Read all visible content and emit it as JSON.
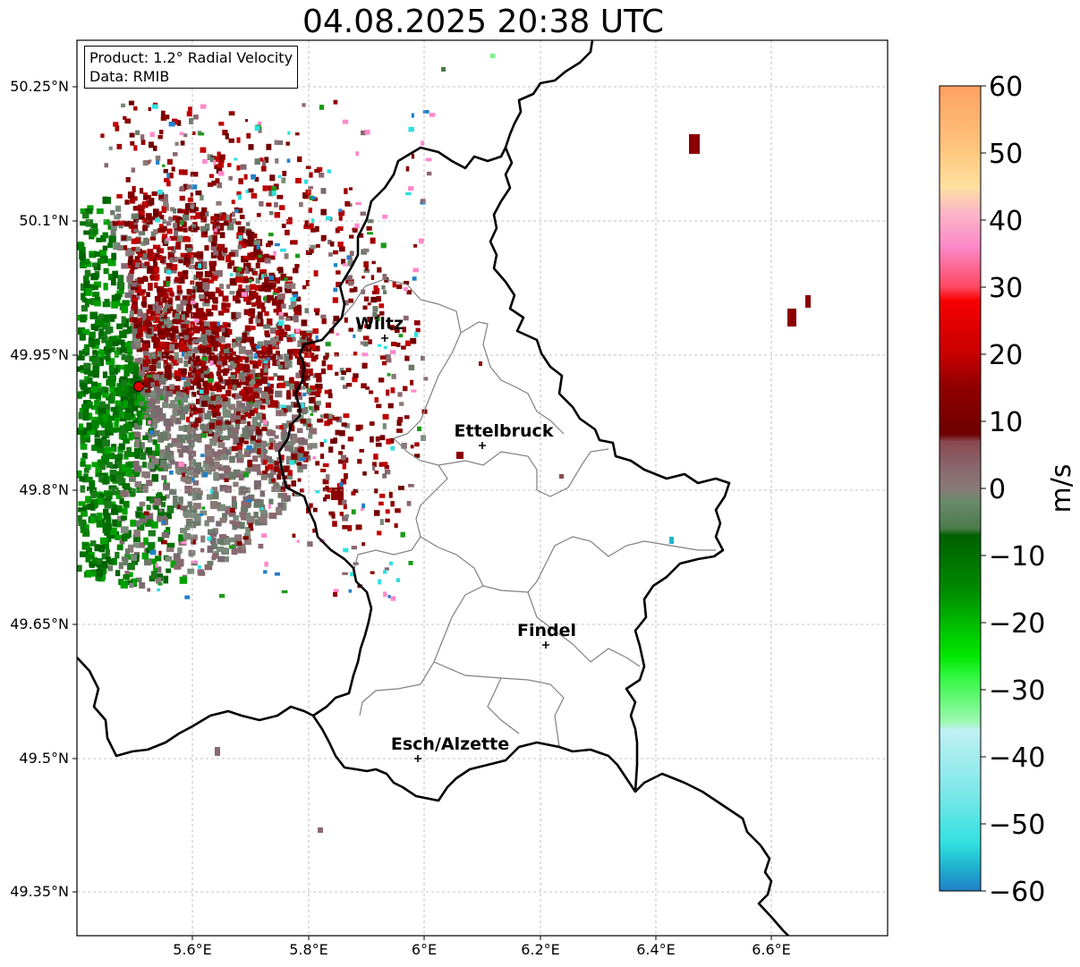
{
  "title": "04.08.2025 20:38 UTC",
  "info_box": {
    "product": "Product: 1.2° Radial Velocity",
    "data": "Data: RMIB"
  },
  "axes": {
    "x_ticks": [
      "5.6°E",
      "5.8°E",
      "6°E",
      "6.2°E",
      "6.4°E",
      "6.6°E"
    ],
    "y_ticks": [
      "50.25°N",
      "50.1°N",
      "49.95°N",
      "49.8°N",
      "49.65°N",
      "49.5°N",
      "49.35°N"
    ]
  },
  "places": [
    {
      "name": "Wiltz",
      "lon": 5.93,
      "lat": 49.967
    },
    {
      "name": "Ettelbruck",
      "lon": 6.1,
      "lat": 49.848
    },
    {
      "name": "Findel",
      "lon": 6.21,
      "lat": 49.625
    },
    {
      "name": "Esch/Alzette",
      "lon": 5.99,
      "lat": 49.498
    }
  ],
  "radar": {
    "lon": 5.505,
    "lat": 49.914
  },
  "colorbar": {
    "label": "m/s",
    "ticks": [
      "60",
      "50",
      "40",
      "30",
      "20",
      "10",
      "0",
      "−10",
      "−20",
      "−30",
      "−40",
      "−50",
      "−60"
    ],
    "min": -60,
    "max": 60,
    "stops": [
      {
        "v": 60,
        "c": "#fda060"
      },
      {
        "v": 50,
        "c": "#fec880"
      },
      {
        "v": 45,
        "c": "#fee0a0"
      },
      {
        "v": 41,
        "c": "#fcb6c8"
      },
      {
        "v": 36,
        "c": "#fc88c8"
      },
      {
        "v": 30,
        "c": "#fd4860"
      },
      {
        "v": 28,
        "c": "#f80000"
      },
      {
        "v": 20,
        "c": "#c80000"
      },
      {
        "v": 15,
        "c": "#900000"
      },
      {
        "v": 8,
        "c": "#6e0000"
      },
      {
        "v": 7,
        "c": "#8a4850"
      },
      {
        "v": 3,
        "c": "#8a6870"
      },
      {
        "v": 0,
        "c": "#8a7a78"
      },
      {
        "v": -2,
        "c": "#6a8a6a"
      },
      {
        "v": -6,
        "c": "#4a7a4a"
      },
      {
        "v": -7,
        "c": "#006000"
      },
      {
        "v": -15,
        "c": "#008a00"
      },
      {
        "v": -25,
        "c": "#00e800"
      },
      {
        "v": -28,
        "c": "#30f840"
      },
      {
        "v": -32,
        "c": "#70f880"
      },
      {
        "v": -35,
        "c": "#a0f8b8"
      },
      {
        "v": -36,
        "c": "#c0f0f4"
      },
      {
        "v": -45,
        "c": "#80e8e8"
      },
      {
        "v": -53,
        "c": "#30e0e0"
      },
      {
        "v": -56,
        "c": "#20b8d0"
      },
      {
        "v": -60,
        "c": "#2080c8"
      }
    ]
  }
}
